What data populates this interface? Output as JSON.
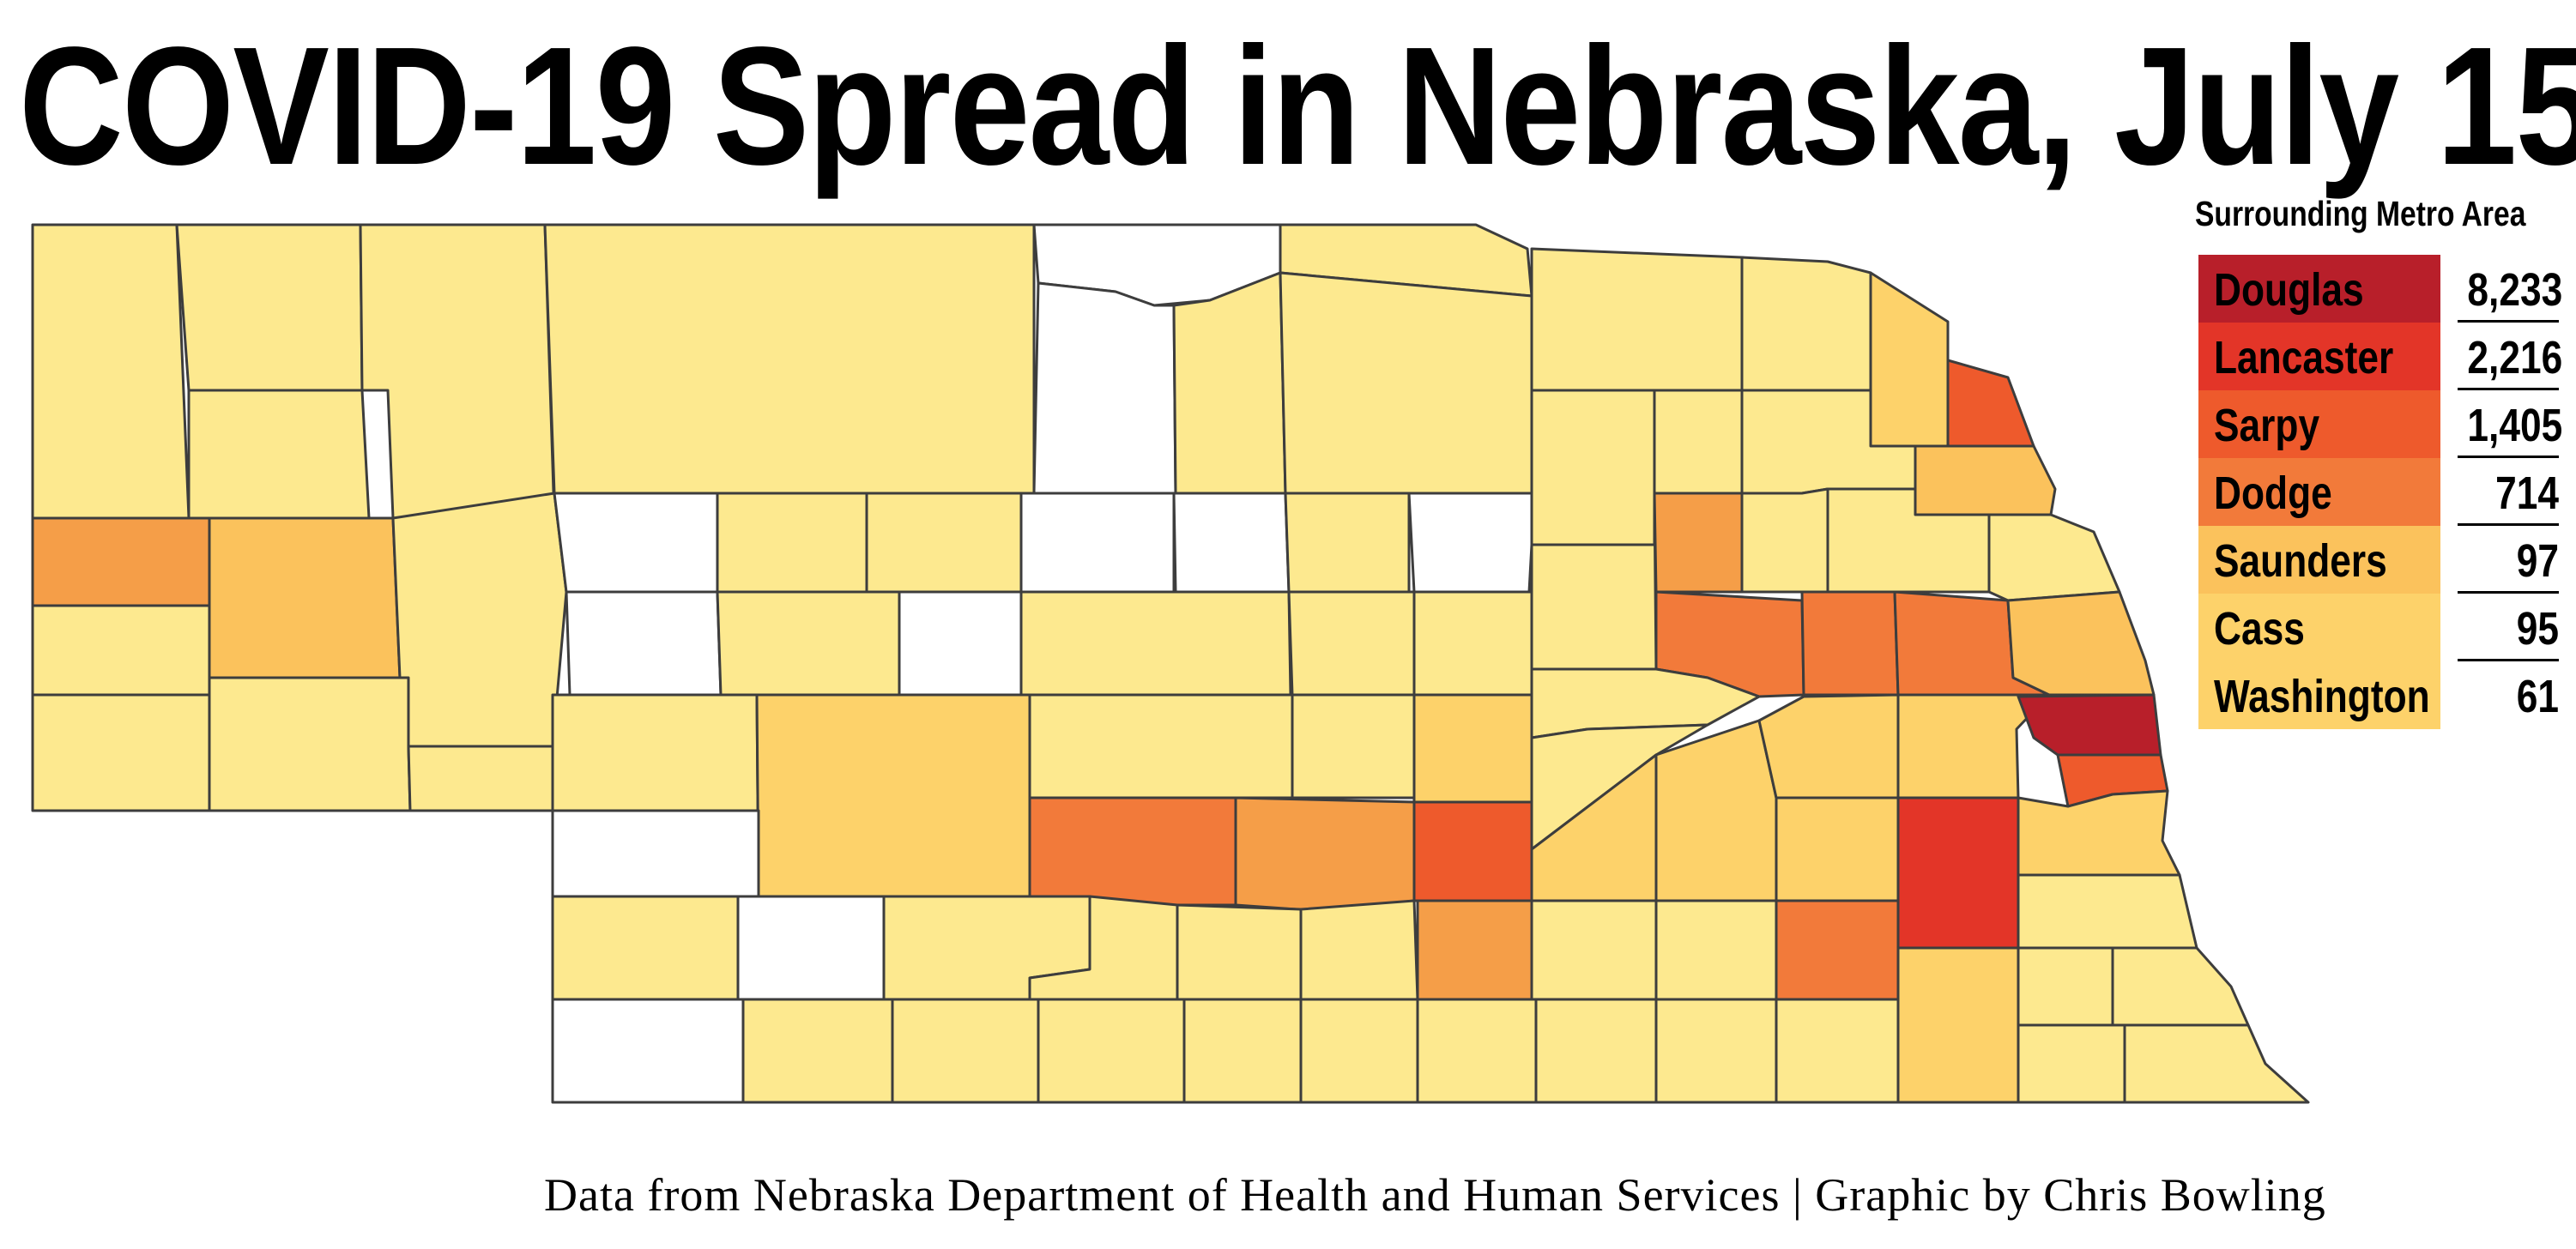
{
  "title": "COVID-19 Spread in Nebraska, July 15",
  "credit": "Data from Nebraska Department of Health and Human Services | Graphic by Chris Bowling",
  "legend": {
    "heading": "Surrounding Metro Area",
    "items": [
      {
        "name": "Douglas",
        "value": "8,233",
        "color": "#b81f2a"
      },
      {
        "name": "Lancaster",
        "value": "2,216",
        "color": "#e33528"
      },
      {
        "name": "Sarpy",
        "value": "1,405",
        "color": "#ee5a2c"
      },
      {
        "name": "Dodge",
        "value": "714",
        "color": "#f27a3a"
      },
      {
        "name": "Saunders",
        "value": "97",
        "color": "#fbc25c"
      },
      {
        "name": "Cass",
        "value": "95",
        "color": "#fdd26a"
      },
      {
        "name": "Washington",
        "value": "61",
        "color": "#fdd26a"
      }
    ]
  },
  "color_scale": {
    "no_data": "#ffffff",
    "level_1": "#fde98f",
    "level_2": "#fdd26a",
    "level_3": "#fbc25c",
    "level_4": "#f59e48",
    "level_5": "#f27a3a",
    "level_6": "#ee5a2c",
    "level_7": "#e33528",
    "level_8": "#b81f2a"
  }
}
